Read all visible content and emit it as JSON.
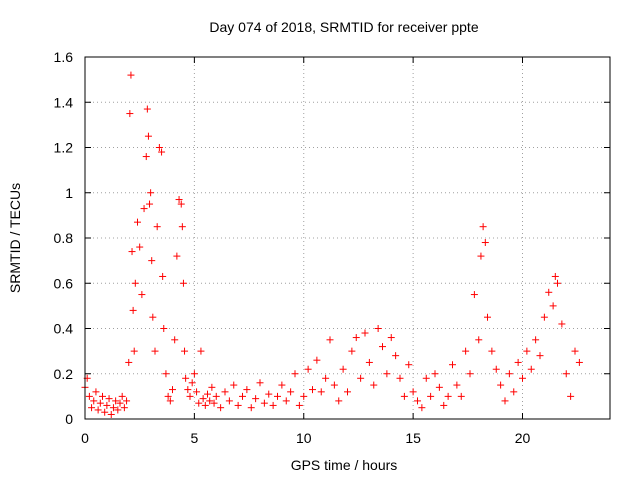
{
  "chart_data": {
    "type": "scatter",
    "title": "Day 074 of 2018, SRMTID for receiver ppte",
    "xlabel": "GPS time / hours",
    "ylabel": "SRMTID / TECUs",
    "xlim": [
      0,
      24
    ],
    "ylim": [
      0,
      1.6
    ],
    "xticks": [
      0,
      5,
      10,
      15,
      20
    ],
    "xtick_labels": [
      "0",
      "5",
      "10",
      "15",
      "20"
    ],
    "yticks": [
      0,
      0.2,
      0.4,
      0.6,
      0.8,
      1,
      1.2,
      1.4,
      1.6
    ],
    "ytick_labels": [
      "0",
      "0.2",
      "0.4",
      "0.6",
      "0.8",
      "1",
      "1.2",
      "1.4",
      "1.6"
    ],
    "grid": true,
    "marker": "+",
    "marker_color": "#ff0000",
    "series": [
      {
        "name": "SRMTID",
        "x": [
          0.0,
          0.1,
          0.2,
          0.3,
          0.4,
          0.5,
          0.6,
          0.7,
          0.8,
          0.9,
          1.0,
          1.1,
          1.2,
          1.3,
          1.4,
          1.5,
          1.6,
          1.7,
          1.8,
          1.9,
          2.0,
          2.05,
          2.1,
          2.15,
          2.2,
          2.25,
          2.3,
          2.4,
          2.5,
          2.6,
          2.7,
          2.8,
          2.85,
          2.9,
          2.95,
          3.0,
          3.05,
          3.1,
          3.2,
          3.3,
          3.4,
          3.5,
          3.55,
          3.6,
          3.7,
          3.8,
          3.9,
          4.0,
          4.1,
          4.2,
          4.3,
          4.4,
          4.45,
          4.5,
          4.55,
          4.6,
          4.7,
          4.8,
          4.9,
          5.0,
          5.1,
          5.2,
          5.3,
          5.4,
          5.5,
          5.6,
          5.7,
          5.8,
          5.9,
          6.0,
          6.2,
          6.4,
          6.6,
          6.8,
          7.0,
          7.2,
          7.4,
          7.6,
          7.8,
          8.0,
          8.2,
          8.4,
          8.6,
          8.8,
          9.0,
          9.2,
          9.4,
          9.6,
          9.8,
          10.0,
          10.2,
          10.4,
          10.6,
          10.8,
          11.0,
          11.2,
          11.4,
          11.6,
          11.8,
          12.0,
          12.2,
          12.4,
          12.6,
          12.8,
          13.0,
          13.2,
          13.4,
          13.6,
          13.8,
          14.0,
          14.2,
          14.4,
          14.6,
          14.8,
          15.0,
          15.2,
          15.4,
          15.6,
          15.8,
          16.0,
          16.2,
          16.4,
          16.6,
          16.8,
          17.0,
          17.2,
          17.4,
          17.6,
          17.8,
          18.0,
          18.1,
          18.2,
          18.3,
          18.4,
          18.6,
          18.8,
          19.0,
          19.2,
          19.4,
          19.6,
          19.8,
          20.0,
          20.2,
          20.4,
          20.6,
          20.8,
          21.0,
          21.2,
          21.4,
          21.5,
          21.6,
          21.8,
          22.0,
          22.2,
          22.4,
          22.6
        ],
        "y": [
          0.14,
          0.18,
          0.1,
          0.05,
          0.08,
          0.12,
          0.04,
          0.07,
          0.1,
          0.03,
          0.06,
          0.09,
          0.02,
          0.05,
          0.08,
          0.04,
          0.07,
          0.1,
          0.05,
          0.08,
          0.25,
          1.35,
          1.52,
          0.74,
          0.48,
          0.3,
          0.6,
          0.87,
          0.76,
          0.55,
          0.93,
          1.16,
          1.37,
          1.25,
          0.95,
          1.0,
          0.7,
          0.45,
          0.3,
          0.85,
          1.2,
          1.18,
          0.63,
          0.4,
          0.2,
          0.1,
          0.08,
          0.13,
          0.35,
          0.72,
          0.97,
          0.95,
          0.85,
          0.6,
          0.3,
          0.18,
          0.13,
          0.1,
          0.16,
          0.2,
          0.12,
          0.07,
          0.3,
          0.09,
          0.06,
          0.11,
          0.08,
          0.14,
          0.07,
          0.1,
          0.05,
          0.12,
          0.08,
          0.15,
          0.06,
          0.1,
          0.13,
          0.05,
          0.09,
          0.16,
          0.07,
          0.11,
          0.06,
          0.1,
          0.15,
          0.08,
          0.12,
          0.2,
          0.06,
          0.1,
          0.22,
          0.13,
          0.26,
          0.12,
          0.18,
          0.35,
          0.15,
          0.08,
          0.22,
          0.12,
          0.3,
          0.36,
          0.18,
          0.38,
          0.25,
          0.15,
          0.4,
          0.32,
          0.2,
          0.36,
          0.28,
          0.18,
          0.1,
          0.24,
          0.12,
          0.08,
          0.05,
          0.18,
          0.1,
          0.2,
          0.14,
          0.06,
          0.1,
          0.24,
          0.15,
          0.1,
          0.3,
          0.2,
          0.55,
          0.35,
          0.72,
          0.85,
          0.78,
          0.45,
          0.3,
          0.22,
          0.15,
          0.08,
          0.2,
          0.12,
          0.25,
          0.18,
          0.3,
          0.22,
          0.35,
          0.28,
          0.45,
          0.56,
          0.5,
          0.63,
          0.6,
          0.42,
          0.2,
          0.1,
          0.3,
          0.25
        ]
      }
    ]
  }
}
